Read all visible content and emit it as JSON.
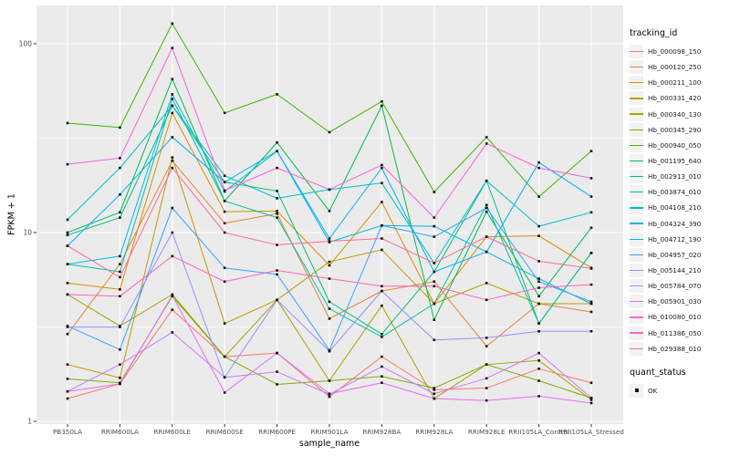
{
  "figure": {
    "y_axis": {
      "title": "FPKM + 1",
      "scale": "log10",
      "tick_labels": [
        "100",
        "10",
        "1"
      ],
      "tick_values": [
        100,
        10,
        1
      ],
      "minor_values": [
        31.623,
        3.1623
      ]
    },
    "x_axis": {
      "title": "sample_name"
    },
    "colors": {
      "panel_bg": "#EBEBEB",
      "grid": "#FFFFFF",
      "tick_text": "#4D4D4D",
      "axis_title_text": "#000000",
      "point": "#111111",
      "tick_mark": "#333333",
      "legend_key_bg": "#F2F2F2"
    },
    "legend_tracking": {
      "title": "tracking_id"
    },
    "legend_quant": {
      "title": "quant_status",
      "items": [
        {
          "label": "OK",
          "shape": "filled-square"
        }
      ]
    }
  },
  "chart_data": {
    "type": "line",
    "title": "",
    "xlabel": "sample_name",
    "ylabel": "FPKM + 1",
    "y_scale": "log10",
    "ylim": [
      1,
      135
    ],
    "grid": true,
    "legend_position": "right",
    "point_shape": "filled-square",
    "point_color": "#111111",
    "categories": [
      "PB350LA",
      "RRIM600LA",
      "RRIM600LE",
      "RRIM600SE",
      "RRIM600PE",
      "RRIM901LA",
      "RRIM928BA",
      "RRIM928LA",
      "RRIM928LE",
      "RRII105LA_Control",
      "RRII105LA_Stressed"
    ],
    "series": [
      {
        "name": "Hb_000098_150",
        "color": "#F8766D",
        "values": [
          1.32,
          1.58,
          3.9,
          2.2,
          2.3,
          1.35,
          2.2,
          1.47,
          1.5,
          1.9,
          1.6
        ]
      },
      {
        "name": "Hb_000120_250",
        "color": "#EA8331",
        "values": [
          2.9,
          6.8,
          24,
          11.2,
          12.6,
          3.5,
          4.9,
          5.5,
          2.5,
          4.2,
          3.8
        ]
      },
      {
        "name": "Hb_000211_100",
        "color": "#D89000",
        "values": [
          5.4,
          5.0,
          43,
          12.9,
          13.0,
          6.7,
          14.5,
          4.2,
          9.5,
          9.6,
          6.5
        ]
      },
      {
        "name": "Hb_000331_420",
        "color": "#C09B00",
        "values": [
          2.0,
          1.7,
          25,
          3.3,
          4.4,
          7.0,
          8.1,
          4.2,
          5.4,
          4.2,
          4.2
        ]
      },
      {
        "name": "Hb_000340_130",
        "color": "#A3A500",
        "values": [
          4.7,
          3.2,
          4.7,
          2.2,
          4.4,
          1.64,
          4.1,
          1.32,
          2.0,
          2.1,
          1.3
        ]
      },
      {
        "name": "Hb_000345_290",
        "color": "#7CAE00",
        "values": [
          1.68,
          1.6,
          4.6,
          2.2,
          1.57,
          1.64,
          1.73,
          1.5,
          2.0,
          1.64,
          1.33
        ]
      },
      {
        "name": "Hb_000940_050",
        "color": "#39B600",
        "values": [
          38,
          36,
          128,
          43,
          54,
          34,
          49.5,
          16.4,
          32,
          15.5,
          27
        ]
      },
      {
        "name": "Hb_001195_640",
        "color": "#00BB4E",
        "values": [
          10,
          12.8,
          65,
          14.7,
          30,
          13,
          47,
          3.45,
          12.9,
          4.6,
          10.6
        ]
      },
      {
        "name": "Hb_002913_010",
        "color": "#00BF7D",
        "values": [
          9.7,
          12,
          47,
          18.5,
          16.6,
          4.3,
          2.9,
          6.2,
          18.8,
          3.3,
          7.8
        ]
      },
      {
        "name": "Hb_003874_010",
        "color": "#00C1A3",
        "values": [
          6.8,
          6.2,
          51,
          14.7,
          12,
          3.95,
          2.8,
          4.2,
          14,
          3.3,
          7.8
        ]
      },
      {
        "name": "Hb_004108_210",
        "color": "#00BFC4",
        "values": [
          11.7,
          22,
          47,
          20,
          15.2,
          16.9,
          18.3,
          6.9,
          18.8,
          10.8,
          12.8
        ]
      },
      {
        "name": "Hb_004324_390",
        "color": "#00BAE0",
        "values": [
          6.8,
          7.5,
          54,
          16.5,
          27,
          8.9,
          10.9,
          10.8,
          7.9,
          5.7,
          4.2
        ]
      },
      {
        "name": "Hb_004712_190",
        "color": "#00B0F6",
        "values": [
          8.5,
          15.9,
          32,
          18.5,
          27,
          9.3,
          22,
          6.2,
          7.9,
          23.5,
          15.5
        ]
      },
      {
        "name": "Hb_004957_020",
        "color": "#35A2FF",
        "values": [
          3.2,
          2.4,
          13.5,
          6.5,
          6.0,
          2.38,
          10.9,
          9.5,
          13.5,
          5.5,
          4.3
        ]
      },
      {
        "name": "Hb_005144_210",
        "color": "#9590FF",
        "values": [
          3.16,
          3.16,
          10,
          1.71,
          4.4,
          2.35,
          4.9,
          2.7,
          2.77,
          3.0,
          3.0
        ]
      },
      {
        "name": "Hb_005784_070",
        "color": "#C77CFF",
        "values": [
          1.44,
          2.0,
          2.96,
          1.71,
          1.83,
          1.39,
          1.95,
          1.4,
          1.69,
          2.3,
          1.33
        ]
      },
      {
        "name": "Hb_005901_030",
        "color": "#E76BF3",
        "values": [
          1.44,
          1.58,
          4.65,
          1.42,
          2.3,
          1.4,
          1.6,
          1.32,
          1.29,
          1.36,
          1.25
        ]
      },
      {
        "name": "Hb_010080_010",
        "color": "#FA62DB",
        "values": [
          23,
          24.8,
          95,
          16.7,
          22,
          16.9,
          22.8,
          12,
          29.6,
          22,
          19.4
        ]
      },
      {
        "name": "Hb_011386_050",
        "color": "#FF62BC",
        "values": [
          4.7,
          4.6,
          7.5,
          5.5,
          6.3,
          5.7,
          5.2,
          5.2,
          4.4,
          5.1,
          5.3
        ]
      },
      {
        "name": "Hb_029388_010",
        "color": "#FF6A98",
        "values": [
          8.5,
          5.8,
          22,
          10,
          8.6,
          9.0,
          9.3,
          6.9,
          9.5,
          7.05,
          6.45
        ]
      }
    ]
  }
}
